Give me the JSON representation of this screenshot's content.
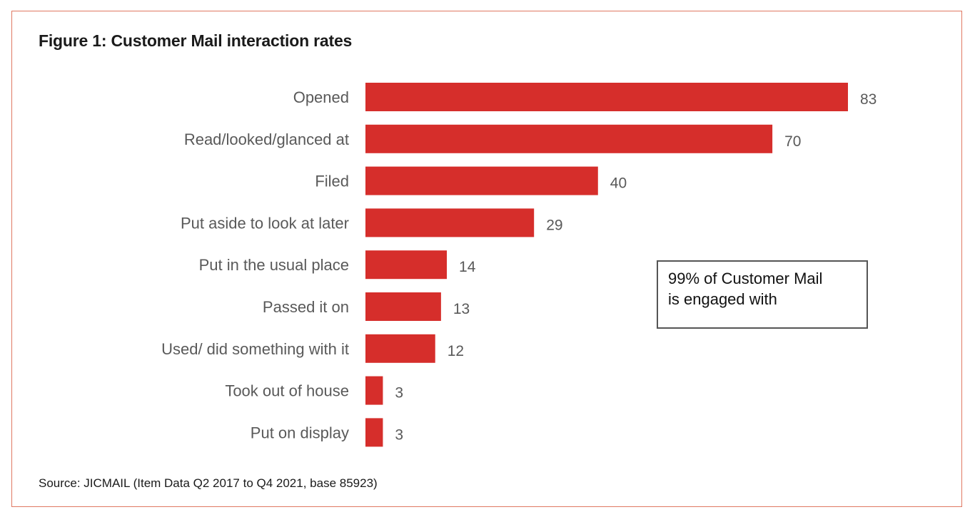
{
  "chart_data": {
    "type": "bar",
    "orientation": "horizontal",
    "title": "Figure 1: Customer Mail interaction rates",
    "categories": [
      "Opened",
      "Read/looked/glanced at",
      "Filed",
      "Put aside to look at later",
      "Put in the usual place",
      "Passed it on",
      "Used/ did something with it",
      "Took out of house",
      "Put on display"
    ],
    "values": [
      83,
      70,
      40,
      29,
      14,
      13,
      12,
      3,
      3
    ],
    "xlim": [
      0,
      83
    ],
    "grid": false,
    "legend": "none",
    "data_labels": true,
    "bar_color": "#d62e2b"
  },
  "annotation": {
    "line1": "99% of Customer Mail",
    "line2": "is engaged with"
  },
  "source": "Source: JICMAIL (Item Data Q2 2017 to Q4 2021, base 85923)",
  "colors": {
    "frame_border": "#e07862",
    "label_text": "#595959",
    "title_text": "#1a1a1a"
  }
}
